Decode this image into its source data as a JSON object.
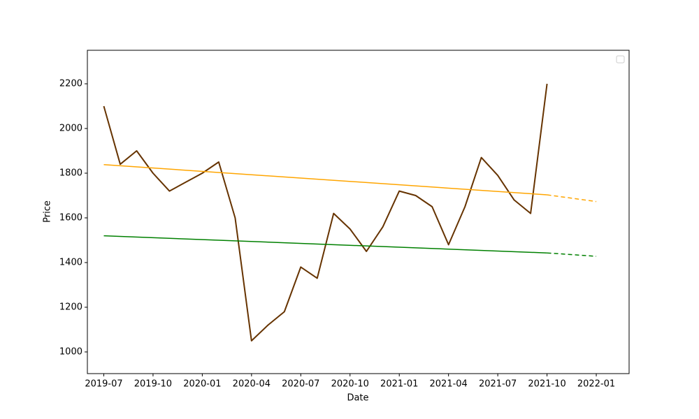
{
  "chart_data": {
    "type": "line",
    "x_label": "Date",
    "y_label": "Price",
    "xlim": [
      "2019-06",
      "2022-03"
    ],
    "xticks": [
      "2019-07",
      "2019-10",
      "2020-01",
      "2020-04",
      "2020-07",
      "2020-10",
      "2021-01",
      "2021-04",
      "2021-07",
      "2021-10",
      "2022-01"
    ],
    "ylim": [
      903,
      2350
    ],
    "yticks": [
      1000,
      1200,
      1400,
      1600,
      1800,
      2000,
      2200
    ],
    "series": [
      {
        "color": "#663300",
        "width": 2,
        "dashed": false,
        "x": [
          "2019-07",
          "2019-08",
          "2019-09",
          "2019-10",
          "2019-11",
          "2019-12",
          "2020-01",
          "2020-02",
          "2020-03",
          "2020-04",
          "2020-05",
          "2020-06",
          "2020-07",
          "2020-08",
          "2020-09",
          "2020-10",
          "2020-11",
          "2020-12",
          "2021-01",
          "2021-02",
          "2021-03",
          "2021-04",
          "2021-05",
          "2021-06",
          "2021-07",
          "2021-08",
          "2021-09",
          "2021-10"
        ],
        "values": [
          2100,
          1840,
          1900,
          1800,
          1720,
          1760,
          1800,
          1850,
          1600,
          1050,
          1120,
          1180,
          1380,
          1330,
          1620,
          1550,
          1450,
          1560,
          1720,
          1700,
          1650,
          1480,
          1650,
          1870,
          1790,
          1680,
          1620,
          2200
        ]
      },
      {
        "color": "#ffa500",
        "width": 1.5,
        "dashed": false,
        "x": [
          "2019-07",
          "2021-10"
        ],
        "values": [
          1838,
          1703
        ]
      },
      {
        "color": "#ffa500",
        "width": 1.5,
        "dashed": true,
        "x": [
          "2021-10",
          "2022-01"
        ],
        "values": [
          1703,
          1673
        ]
      },
      {
        "color": "#008000",
        "width": 1.5,
        "dashed": false,
        "x": [
          "2019-07",
          "2021-10"
        ],
        "values": [
          1520,
          1443
        ]
      },
      {
        "color": "#008000",
        "width": 1.5,
        "dashed": true,
        "x": [
          "2021-10",
          "2022-01"
        ],
        "values": [
          1443,
          1428
        ]
      }
    ]
  }
}
